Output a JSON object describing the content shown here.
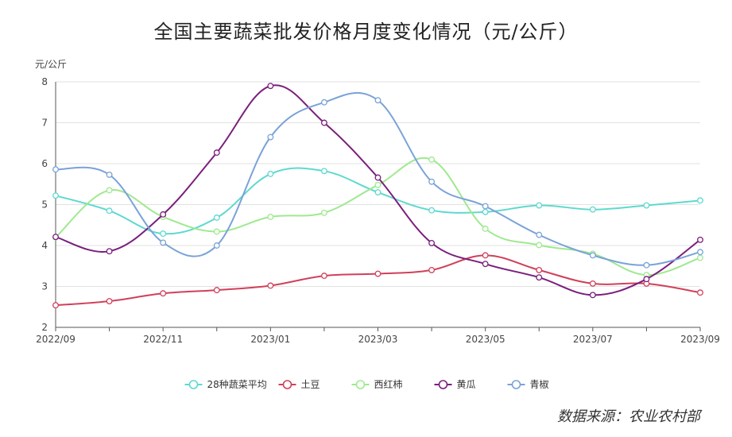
{
  "chart_data": {
    "type": "line",
    "title": "全国主要蔬菜批发价格月度变化情况（元/公斤）",
    "ylabel": "元/公斤",
    "xlabel": "",
    "ylim": [
      2,
      8
    ],
    "yticks": [
      2,
      3,
      4,
      5,
      6,
      7,
      8
    ],
    "categories": [
      "2022/09",
      "2022/10",
      "2022/11",
      "2022/12",
      "2023/01",
      "2023/02",
      "2023/03",
      "2023/04",
      "2023/05",
      "2023/06",
      "2023/07",
      "2023/08",
      "2023/09"
    ],
    "xtick_labels": [
      "2022/09",
      "2022/11",
      "2023/01",
      "2023/03",
      "2023/05",
      "2023/07",
      "2023/09"
    ],
    "grid": "horizontal",
    "legend_position": "bottom",
    "smooth": true,
    "series": [
      {
        "name": "28种蔬菜平均",
        "color": "#5ed9cf",
        "values": [
          5.22,
          4.85,
          4.29,
          4.68,
          5.75,
          5.82,
          5.3,
          4.86,
          4.82,
          4.98,
          4.88,
          4.98,
          5.1
        ]
      },
      {
        "name": "土豆",
        "color": "#d0405a",
        "values": [
          2.54,
          2.64,
          2.83,
          2.91,
          3.02,
          3.26,
          3.31,
          3.4,
          3.76,
          3.4,
          3.07,
          3.07,
          2.85
        ]
      },
      {
        "name": "西红柿",
        "color": "#9fe98f",
        "values": [
          4.2,
          5.35,
          4.7,
          4.34,
          4.7,
          4.8,
          5.48,
          6.1,
          4.41,
          4.01,
          3.8,
          3.28,
          3.7
        ]
      },
      {
        "name": "黄瓜",
        "color": "#7a1f7c",
        "values": [
          4.21,
          3.86,
          4.76,
          6.27,
          7.9,
          7.0,
          5.66,
          4.06,
          3.55,
          3.22,
          2.79,
          3.18,
          4.14
        ]
      },
      {
        "name": "青椒",
        "color": "#7aa2d8",
        "values": [
          5.86,
          5.73,
          4.07,
          4.0,
          6.65,
          7.5,
          7.55,
          5.56,
          4.96,
          4.26,
          3.76,
          3.52,
          3.84
        ]
      }
    ]
  },
  "source_note": "数据来源：农业农村部"
}
